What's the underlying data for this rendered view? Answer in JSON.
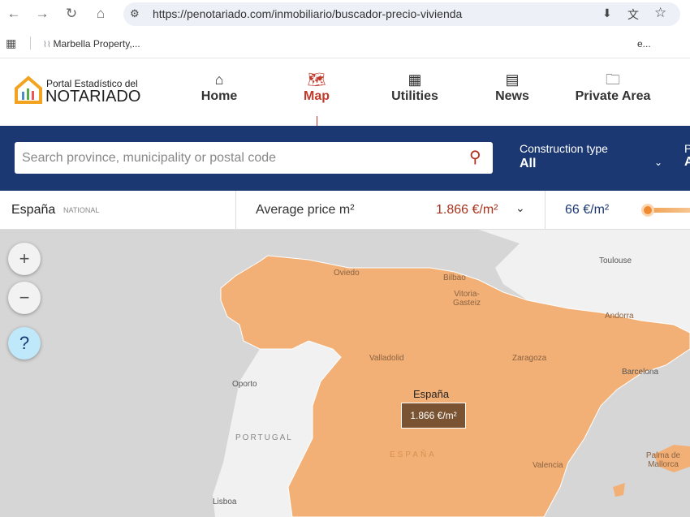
{
  "browser": {
    "url": "https://penotariado.com/inmobiliario/buscador-precio-vivienda",
    "bookmark": "Marbella Property,...",
    "bookmark_trailing": "e..."
  },
  "header": {
    "logo_top": "Portal Estadístico del",
    "logo_bottom": "NOTARIADO",
    "nav": [
      {
        "label": "Home",
        "icon": "home-icon"
      },
      {
        "label": "Map",
        "icon": "map-icon",
        "active": true
      },
      {
        "label": "Utilities",
        "icon": "grid-icon"
      },
      {
        "label": "News",
        "icon": "newspaper-icon"
      },
      {
        "label": "Private Area",
        "icon": "folder-icon"
      }
    ]
  },
  "filters": {
    "search_placeholder": "Search province, municipality or postal code",
    "construction_label": "Construction type",
    "construction_value": "All",
    "next_label": "P",
    "next_value": "A"
  },
  "stats": {
    "region": "España",
    "scope": "NATIONAL",
    "metric": "Average price m²",
    "value": "1.866 €/m²",
    "range_min": "66 €/m²"
  },
  "map": {
    "labels": [
      "Oviedo",
      "Bilbao",
      "Vitoria-Gasteiz",
      "Toulouse",
      "Andorra",
      "Valladolid",
      "Zaragoza",
      "Barcelona",
      "Oporto",
      "PORTUGAL",
      "ESPAÑA",
      "Valencia",
      "Palma de Mallorca",
      "Lisboa"
    ],
    "tooltip": {
      "title": "España",
      "value": "1.866 €/m²"
    },
    "colors": {
      "spain": "#f2b077",
      "land": "#f1f1f1",
      "sea": "#d6d6d6",
      "accent": "#c0392b",
      "navy": "#1b3873"
    }
  }
}
